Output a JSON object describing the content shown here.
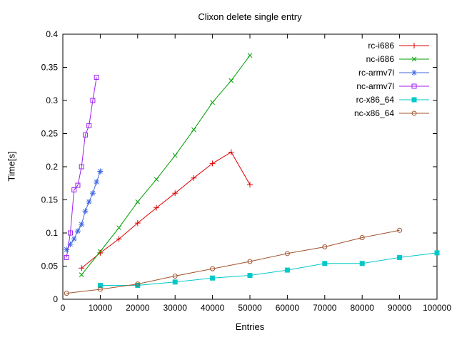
{
  "chart_data": {
    "type": "line",
    "title": "Clixon delete single entry",
    "xlabel": "Entries",
    "ylabel": "Time[s]",
    "xlim": [
      0,
      100000
    ],
    "ylim": [
      0,
      0.4
    ],
    "x_ticks": [
      0,
      10000,
      20000,
      30000,
      40000,
      50000,
      60000,
      70000,
      80000,
      90000,
      100000
    ],
    "y_ticks": [
      0,
      0.05,
      0.1,
      0.15,
      0.2,
      0.25,
      0.3,
      0.35,
      0.4
    ],
    "grid": false,
    "legend_position": "top-right",
    "series": [
      {
        "name": "rc-i686",
        "color": "#dd0000",
        "marker": "plus",
        "x": [
          5000,
          10000,
          15000,
          20000,
          25000,
          30000,
          35000,
          40000,
          45000,
          50000
        ],
        "y": [
          0.047,
          0.07,
          0.091,
          0.115,
          0.138,
          0.16,
          0.183,
          0.205,
          0.222,
          0.173
        ]
      },
      {
        "name": "nc-i686",
        "color": "#00a000",
        "marker": "cross",
        "x": [
          5000,
          10000,
          15000,
          20000,
          25000,
          30000,
          35000,
          40000,
          45000,
          50000
        ],
        "y": [
          0.037,
          0.072,
          0.108,
          0.147,
          0.181,
          0.217,
          0.256,
          0.297,
          0.33,
          0.368
        ]
      },
      {
        "name": "rc-armv7l",
        "color": "#4169e1",
        "marker": "asterisk",
        "x": [
          1000,
          2000,
          3000,
          4000,
          5000,
          6000,
          7000,
          8000,
          9000,
          10000
        ],
        "y": [
          0.075,
          0.083,
          0.091,
          0.103,
          0.113,
          0.133,
          0.147,
          0.16,
          0.177,
          0.193
        ]
      },
      {
        "name": "nc-armv7l",
        "color": "#a020f0",
        "marker": "square-open",
        "x": [
          1000,
          2000,
          3000,
          4000,
          5000,
          6000,
          7000,
          8000,
          9000
        ],
        "y": [
          0.063,
          0.1,
          0.165,
          0.172,
          0.2,
          0.248,
          0.262,
          0.3,
          0.335
        ]
      },
      {
        "name": "rc-x86_64",
        "color": "#00c8c8",
        "marker": "square-filled",
        "x": [
          10000,
          20000,
          30000,
          40000,
          50000,
          60000,
          70000,
          80000,
          90000,
          100000
        ],
        "y": [
          0.021,
          0.021,
          0.026,
          0.032,
          0.036,
          0.044,
          0.054,
          0.054,
          0.063,
          0.07
        ]
      },
      {
        "name": "nc-x86_64",
        "color": "#a0522d",
        "marker": "circle-open",
        "x": [
          1000,
          10000,
          20000,
          30000,
          40000,
          50000,
          60000,
          70000,
          80000,
          90000
        ],
        "y": [
          0.009,
          0.015,
          0.023,
          0.035,
          0.046,
          0.057,
          0.069,
          0.079,
          0.093,
          0.104
        ]
      }
    ]
  }
}
